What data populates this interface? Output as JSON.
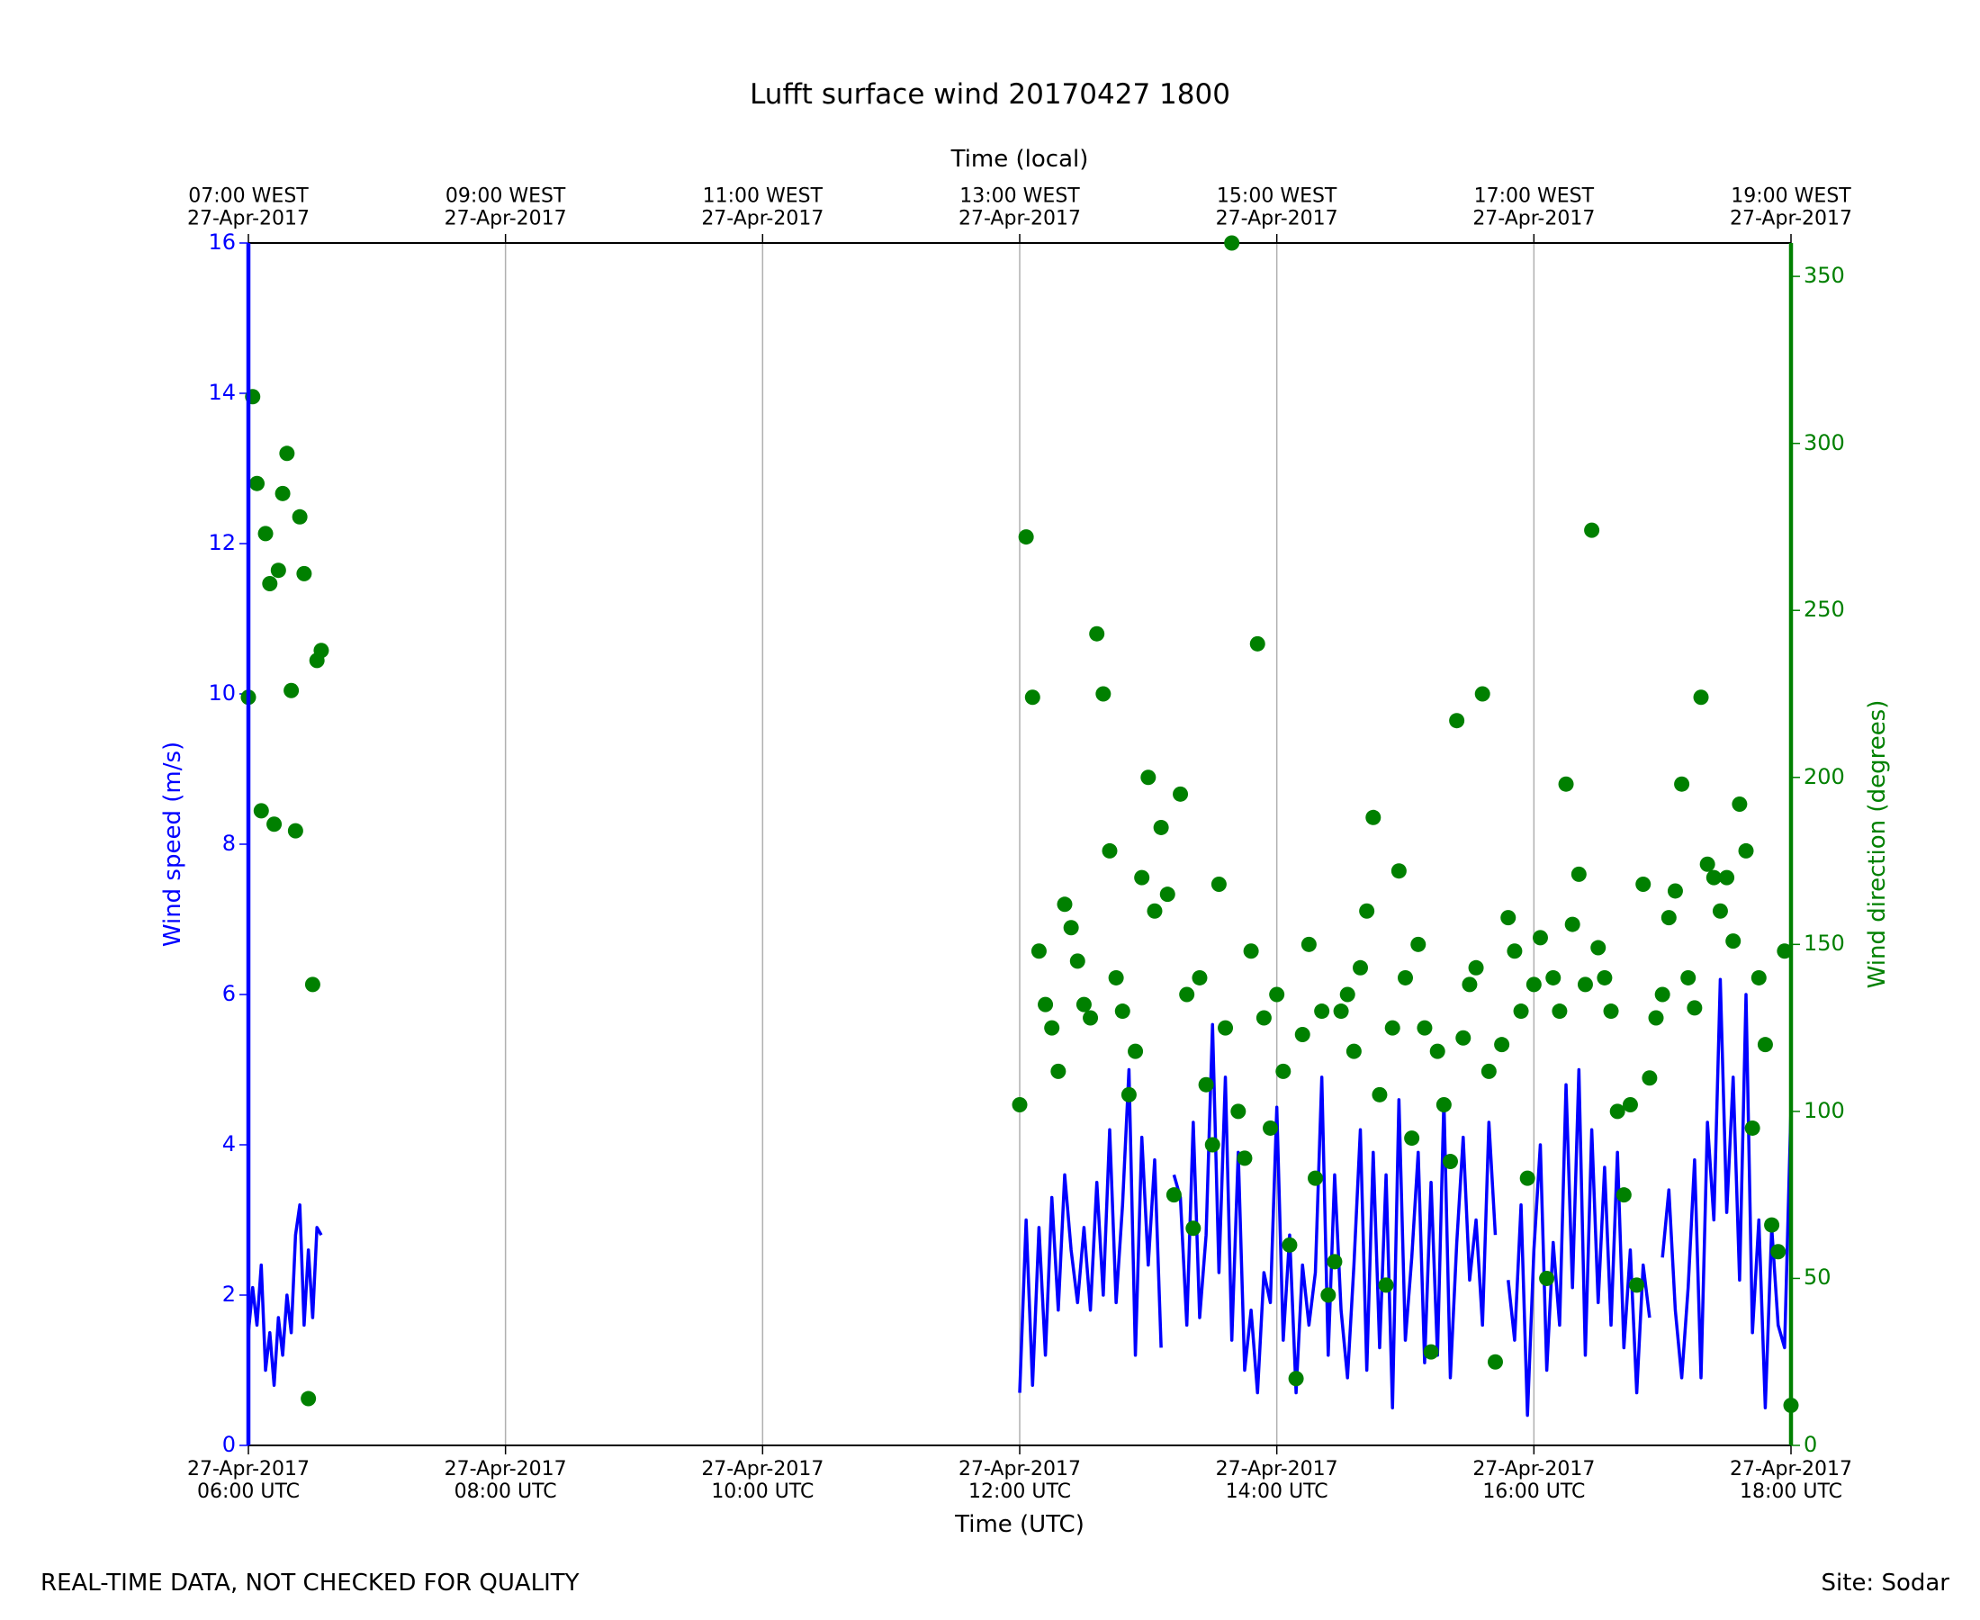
{
  "chart_data": {
    "type": "combo",
    "title": "Lufft surface wind 20170427 1800",
    "xlabel": "Time (UTC)",
    "x2label": "Time (local)",
    "ylabel": "Wind speed (m/s)",
    "y2label": "Wind direction (degrees)",
    "footer_left": "REAL-TIME DATA, NOT CHECKED FOR QUALITY",
    "footer_right": "Site: Sodar",
    "grid": "x",
    "xlim": [
      "2017-04-27 06:00",
      "2017-04-27 18:00"
    ],
    "xticks": [
      {
        "value": "2017-04-27 06:00",
        "label": "27-Apr-2017\n06:00 UTC"
      },
      {
        "value": "2017-04-27 08:00",
        "label": "27-Apr-2017\n08:00 UTC"
      },
      {
        "value": "2017-04-27 10:00",
        "label": "27-Apr-2017\n10:00 UTC"
      },
      {
        "value": "2017-04-27 12:00",
        "label": "27-Apr-2017\n12:00 UTC"
      },
      {
        "value": "2017-04-27 14:00",
        "label": "27-Apr-2017\n14:00 UTC"
      },
      {
        "value": "2017-04-27 16:00",
        "label": "27-Apr-2017\n16:00 UTC"
      },
      {
        "value": "2017-04-27 18:00",
        "label": "27-Apr-2017\n18:00 UTC"
      }
    ],
    "x2ticks": [
      {
        "value": "2017-04-27 06:00",
        "label": "07:00 WEST\n27-Apr-2017"
      },
      {
        "value": "2017-04-27 08:00",
        "label": "09:00 WEST\n27-Apr-2017"
      },
      {
        "value": "2017-04-27 10:00",
        "label": "11:00 WEST\n27-Apr-2017"
      },
      {
        "value": "2017-04-27 12:00",
        "label": "13:00 WEST\n27-Apr-2017"
      },
      {
        "value": "2017-04-27 14:00",
        "label": "15:00 WEST\n27-Apr-2017"
      },
      {
        "value": "2017-04-27 16:00",
        "label": "17:00 WEST\n27-Apr-2017"
      },
      {
        "value": "2017-04-27 18:00",
        "label": "19:00 WEST\n27-Apr-2017"
      }
    ],
    "ylim": [
      0,
      16
    ],
    "yticks": [
      0,
      2,
      4,
      6,
      8,
      10,
      12,
      14,
      16
    ],
    "ycolor": "#0000ff",
    "y2lim": [
      0,
      360
    ],
    "y2ticks": [
      0,
      50,
      100,
      150,
      200,
      250,
      300,
      350
    ],
    "y2color": "#008000",
    "x": [
      "2017-04-27 06:00",
      "2017-04-27 06:02",
      "2017-04-27 06:04",
      "2017-04-27 06:06",
      "2017-04-27 06:08",
      "2017-04-27 06:10",
      "2017-04-27 06:12",
      "2017-04-27 06:14",
      "2017-04-27 06:16",
      "2017-04-27 06:18",
      "2017-04-27 06:20",
      "2017-04-27 06:22",
      "2017-04-27 06:24",
      "2017-04-27 06:26",
      "2017-04-27 06:28",
      "2017-04-27 06:30",
      "2017-04-27 06:32",
      "2017-04-27 06:34",
      "2017-04-27 06:36",
      "2017-04-27 12:00",
      "2017-04-27 12:03",
      "2017-04-27 12:06",
      "2017-04-27 12:09",
      "2017-04-27 12:12",
      "2017-04-27 12:15",
      "2017-04-27 12:18",
      "2017-04-27 12:21",
      "2017-04-27 12:24",
      "2017-04-27 12:27",
      "2017-04-27 12:30",
      "2017-04-27 12:33",
      "2017-04-27 12:36",
      "2017-04-27 12:39",
      "2017-04-27 12:42",
      "2017-04-27 12:45",
      "2017-04-27 12:48",
      "2017-04-27 12:51",
      "2017-04-27 12:54",
      "2017-04-27 12:57",
      "2017-04-27 13:00",
      "2017-04-27 13:03",
      "2017-04-27 13:06",
      "2017-04-27 13:09",
      "2017-04-27 13:12",
      "2017-04-27 13:15",
      "2017-04-27 13:18",
      "2017-04-27 13:21",
      "2017-04-27 13:24",
      "2017-04-27 13:27",
      "2017-04-27 13:30",
      "2017-04-27 13:33",
      "2017-04-27 13:36",
      "2017-04-27 13:39",
      "2017-04-27 13:42",
      "2017-04-27 13:45",
      "2017-04-27 13:48",
      "2017-04-27 13:51",
      "2017-04-27 13:54",
      "2017-04-27 13:57",
      "2017-04-27 14:00",
      "2017-04-27 14:03",
      "2017-04-27 14:06",
      "2017-04-27 14:09",
      "2017-04-27 14:12",
      "2017-04-27 14:15",
      "2017-04-27 14:18",
      "2017-04-27 14:21",
      "2017-04-27 14:24",
      "2017-04-27 14:27",
      "2017-04-27 14:30",
      "2017-04-27 14:33",
      "2017-04-27 14:36",
      "2017-04-27 14:39",
      "2017-04-27 14:42",
      "2017-04-27 14:45",
      "2017-04-27 14:48",
      "2017-04-27 14:51",
      "2017-04-27 14:54",
      "2017-04-27 14:57",
      "2017-04-27 15:00",
      "2017-04-27 15:03",
      "2017-04-27 15:06",
      "2017-04-27 15:09",
      "2017-04-27 15:12",
      "2017-04-27 15:15",
      "2017-04-27 15:18",
      "2017-04-27 15:21",
      "2017-04-27 15:24",
      "2017-04-27 15:27",
      "2017-04-27 15:30",
      "2017-04-27 15:33",
      "2017-04-27 15:36",
      "2017-04-27 15:39",
      "2017-04-27 15:42",
      "2017-04-27 15:45",
      "2017-04-27 15:48",
      "2017-04-27 15:51",
      "2017-04-27 15:54",
      "2017-04-27 15:57",
      "2017-04-27 16:00",
      "2017-04-27 16:03",
      "2017-04-27 16:06",
      "2017-04-27 16:09",
      "2017-04-27 16:12",
      "2017-04-27 16:15",
      "2017-04-27 16:18",
      "2017-04-27 16:21",
      "2017-04-27 16:24",
      "2017-04-27 16:27",
      "2017-04-27 16:30",
      "2017-04-27 16:33",
      "2017-04-27 16:36",
      "2017-04-27 16:39",
      "2017-04-27 16:42",
      "2017-04-27 16:45",
      "2017-04-27 16:48",
      "2017-04-27 16:51",
      "2017-04-27 16:54",
      "2017-04-27 16:57",
      "2017-04-27 17:00",
      "2017-04-27 17:03",
      "2017-04-27 17:06",
      "2017-04-27 17:09",
      "2017-04-27 17:12",
      "2017-04-27 17:15",
      "2017-04-27 17:18",
      "2017-04-27 17:21",
      "2017-04-27 17:24",
      "2017-04-27 17:27",
      "2017-04-27 17:30",
      "2017-04-27 17:33",
      "2017-04-27 17:36",
      "2017-04-27 17:39",
      "2017-04-27 17:42",
      "2017-04-27 17:45",
      "2017-04-27 17:48",
      "2017-04-27 17:51",
      "2017-04-27 17:54",
      "2017-04-27 17:57",
      "2017-04-27 18:00"
    ],
    "series": [
      {
        "type": "line",
        "color": "#0000ff",
        "values": [
          1.5,
          2.1,
          1.6,
          2.4,
          1.0,
          1.5,
          0.8,
          1.7,
          1.2,
          2.0,
          1.5,
          2.8,
          3.2,
          1.6,
          2.6,
          1.7,
          2.9,
          2.8,
          null,
          0.7,
          3.0,
          0.8,
          2.9,
          1.2,
          3.3,
          1.8,
          3.6,
          2.6,
          1.9,
          2.9,
          1.8,
          3.5,
          2.0,
          4.2,
          1.9,
          3.2,
          5.0,
          1.2,
          4.1,
          2.4,
          3.8,
          1.3,
          null,
          3.6,
          3.3,
          1.6,
          4.3,
          1.7,
          2.8,
          5.6,
          2.3,
          4.9,
          1.4,
          3.9,
          1.0,
          1.8,
          0.7,
          2.3,
          1.9,
          4.5,
          1.4,
          2.8,
          0.7,
          2.4,
          1.6,
          2.3,
          4.9,
          1.2,
          3.6,
          1.8,
          0.9,
          2.4,
          4.2,
          1.0,
          3.9,
          1.3,
          3.6,
          0.5,
          4.6,
          1.4,
          2.5,
          3.9,
          1.1,
          3.5,
          1.2,
          4.6,
          0.9,
          2.7,
          4.1,
          2.2,
          3.0,
          1.6,
          4.3,
          2.8,
          null,
          2.2,
          1.4,
          3.2,
          0.4,
          2.6,
          4.0,
          1.0,
          2.7,
          1.6,
          4.8,
          2.1,
          5.0,
          1.2,
          4.2,
          1.9,
          3.7,
          1.6,
          3.9,
          1.3,
          2.6,
          0.7,
          2.4,
          1.7,
          null,
          2.5,
          3.4,
          1.8,
          0.9,
          2.1,
          3.8,
          0.9,
          4.3,
          3.0,
          6.2,
          3.1,
          4.9,
          2.2,
          6.0,
          1.5,
          3.0,
          0.5,
          2.9,
          1.6,
          1.3,
          4.5
        ]
      },
      {
        "type": "scatter",
        "axis": "y2",
        "color": "#008000",
        "values": [
          224,
          314,
          288,
          190,
          273,
          258,
          186,
          262,
          285,
          297,
          226,
          184,
          278,
          261,
          14,
          138,
          235,
          238,
          null,
          102,
          272,
          224,
          148,
          132,
          125,
          112,
          162,
          155,
          145,
          132,
          128,
          243,
          225,
          178,
          140,
          130,
          105,
          118,
          170,
          200,
          160,
          185,
          165,
          75,
          195,
          135,
          65,
          140,
          108,
          90,
          168,
          125,
          360,
          100,
          86,
          148,
          240,
          128,
          95,
          135,
          112,
          60,
          20,
          123,
          150,
          80,
          130,
          45,
          55,
          130,
          135,
          118,
          143,
          160,
          188,
          105,
          48,
          125,
          172,
          140,
          92,
          150,
          125,
          28,
          118,
          102,
          85,
          217,
          122,
          138,
          143,
          225,
          112,
          25,
          120,
          158,
          148,
          130,
          80,
          138,
          152,
          50,
          140,
          130,
          198,
          156,
          171,
          138,
          274,
          149,
          140,
          130,
          100,
          75,
          102,
          48,
          168,
          110,
          128,
          135,
          158,
          166,
          198,
          140,
          131,
          224,
          174,
          170,
          160,
          170,
          151,
          192,
          178,
          95,
          140,
          120,
          66,
          58,
          148,
          12
        ]
      }
    ]
  }
}
